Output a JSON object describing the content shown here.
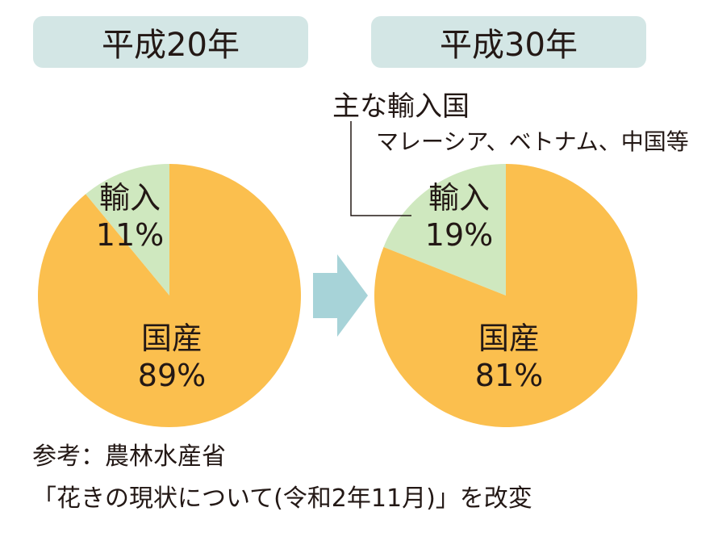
{
  "colors": {
    "domestic": "#FBBF4E",
    "import": "#CFE8BF",
    "tab_bg": "#D3E6E5",
    "arrow": "#A7D3D8",
    "text": "#231815"
  },
  "chart_data": [
    {
      "type": "pie",
      "title": "平成20年",
      "slices": [
        {
          "label": "輸入",
          "value": 11,
          "display": "11%"
        },
        {
          "label": "国産",
          "value": 89,
          "display": "89%"
        }
      ]
    },
    {
      "type": "pie",
      "title": "平成30年",
      "slices": [
        {
          "label": "輸入",
          "value": 19,
          "display": "19%"
        },
        {
          "label": "国産",
          "value": 81,
          "display": "81%"
        }
      ]
    }
  ],
  "annotation": {
    "title": "主な輸入国",
    "text": "マレーシア、ベトナム、中国等"
  },
  "source": {
    "line1": "参考：農林水産省",
    "line2": "「花きの現状について(令和2年11月)」を改変"
  }
}
